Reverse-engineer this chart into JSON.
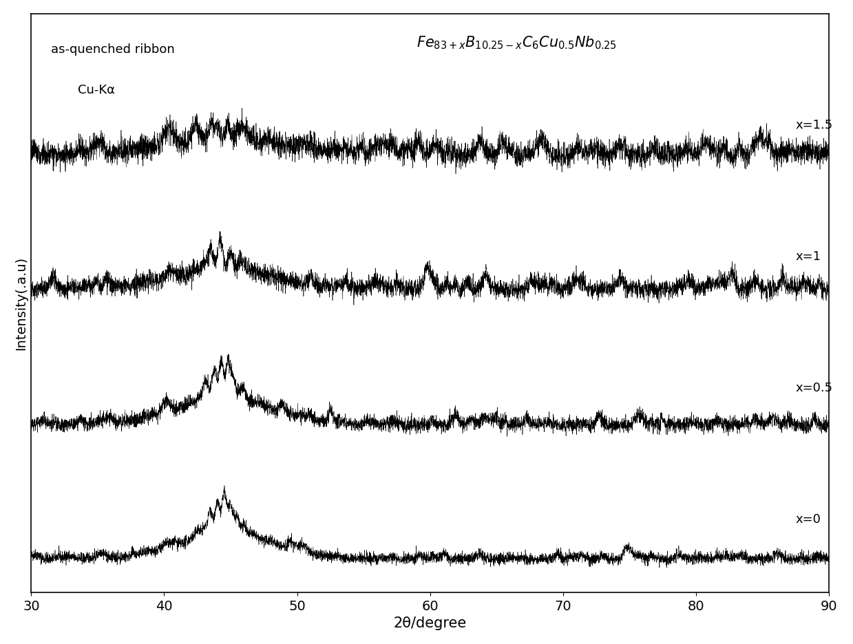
{
  "xlabel": "2θ/degree",
  "ylabel": "Intensity(.a.u)",
  "xlim": [
    30,
    90
  ],
  "x_ticks": [
    30,
    40,
    50,
    60,
    70,
    80,
    90
  ],
  "annotation_left_line1": "as-quenched ribbon",
  "annotation_left_line2": "Cu-Kα",
  "series_labels": [
    "x=1.5",
    "x=1",
    "x=0.5",
    "x=0"
  ],
  "background_color": "#ffffff",
  "line_color": "#000000",
  "seed": 42,
  "n_points": 6000
}
